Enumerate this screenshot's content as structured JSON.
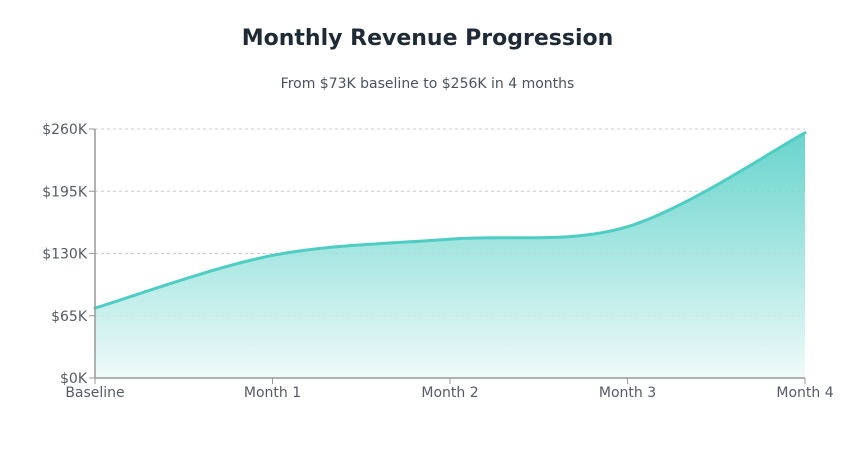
{
  "chart_data": {
    "type": "area",
    "title": "Monthly Revenue Progression",
    "subtitle": "From $73K baseline to $256K in 4 months",
    "xlabel": "",
    "ylabel": "",
    "categories": [
      "Baseline",
      "Month 1",
      "Month 2",
      "Month 3",
      "Month 4"
    ],
    "values": [
      73,
      128,
      145,
      158,
      256
    ],
    "ylim": [
      0,
      260
    ],
    "yticks": [
      0,
      65,
      130,
      195,
      260
    ],
    "ytick_labels": [
      "$0K",
      "$65K",
      "$130K",
      "$195K",
      "$260K"
    ],
    "grid": true,
    "legend": "none",
    "line_color": "#4ecdc4",
    "fill_color_top": "#4ecdc4",
    "fill_color_bottom": "#eefaf9",
    "grid_color": "#cccccc",
    "axis_color": "#999999"
  }
}
